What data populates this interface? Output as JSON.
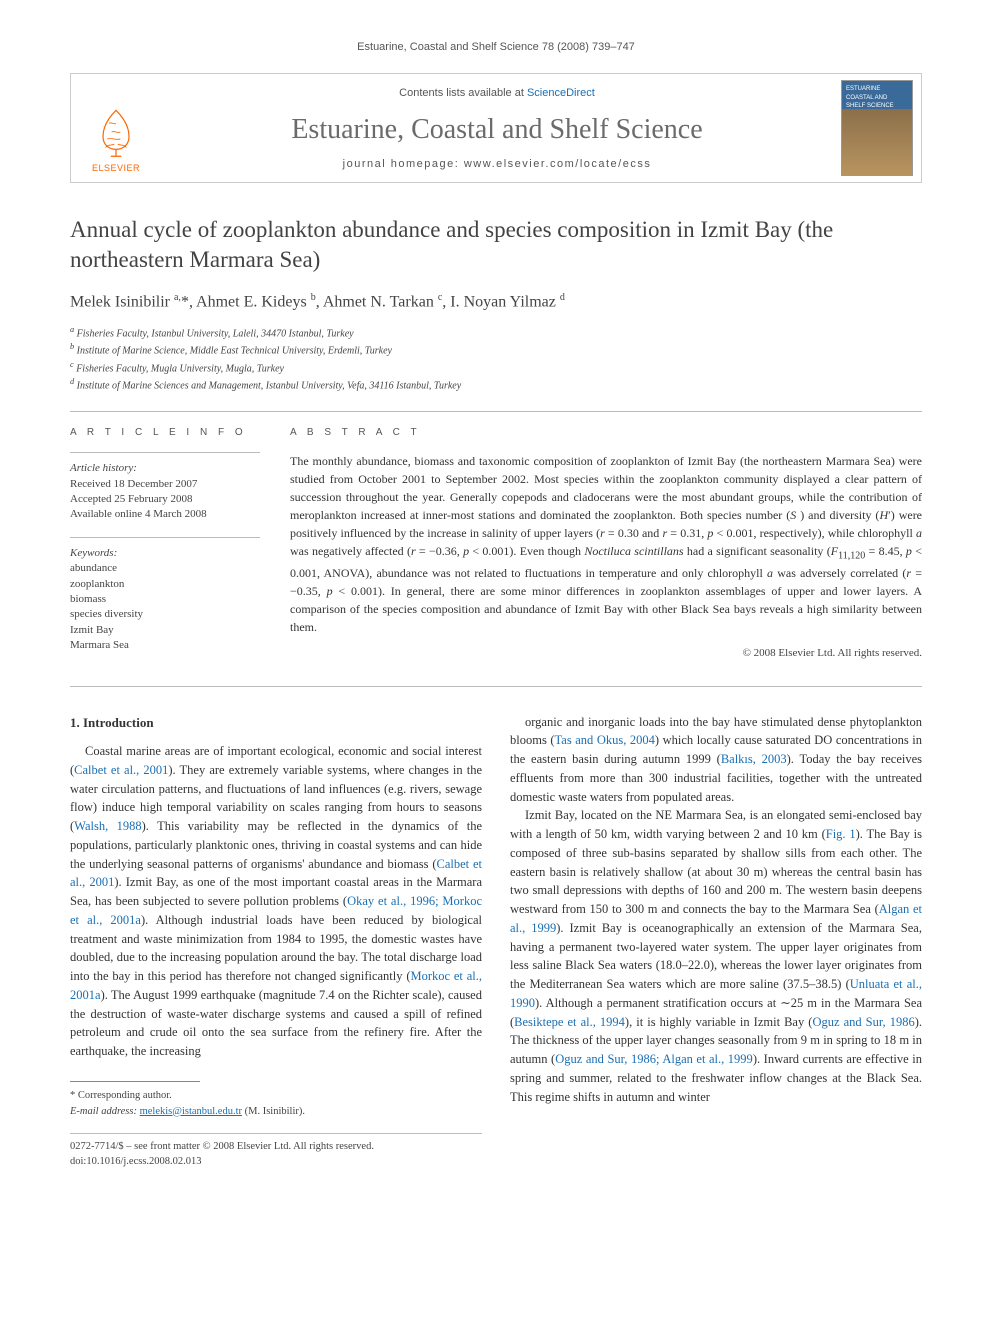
{
  "running_head": "Estuarine, Coastal and Shelf Science 78 (2008) 739–747",
  "masthead": {
    "contents_prefix": "Contents lists available at ",
    "contents_link": "ScienceDirect",
    "journal_name": "Estuarine, Coastal and Shelf Science",
    "homepage_prefix": "journal homepage: ",
    "homepage_url": "www.elsevier.com/locate/ecss",
    "publisher_label": "ELSEVIER",
    "cover_text": "ESTUARINE COASTAL AND SHELF SCIENCE"
  },
  "article": {
    "title": "Annual cycle of zooplankton abundance and species composition in Izmit Bay (the northeastern Marmara Sea)",
    "authors_html": "Melek Isinibilir <sup>a,</sup>*, Ahmet E. Kideys <sup>b</sup>, Ahmet N. Tarkan <sup>c</sup>, I. Noyan Yilmaz <sup>d</sup>",
    "affiliations": [
      "a Fisheries Faculty, Istanbul University, Laleli, 34470 Istanbul, Turkey",
      "b Institute of Marine Science, Middle East Technical University, Erdemli, Turkey",
      "c Fisheries Faculty, Mugla University, Mugla, Turkey",
      "d Institute of Marine Sciences and Management, Istanbul University, Vefa, 34116 Istanbul, Turkey"
    ]
  },
  "article_info": {
    "heading": "A R T I C L E   I N F O",
    "history_label": "Article history:",
    "history": [
      "Received 18 December 2007",
      "Accepted 25 February 2008",
      "Available online 4 March 2008"
    ],
    "keywords_label": "Keywords:",
    "keywords": [
      "abundance",
      "zooplankton",
      "biomass",
      "species diversity",
      "Izmit Bay",
      "Marmara Sea"
    ]
  },
  "abstract": {
    "heading": "A B S T R A C T",
    "text": "The monthly abundance, biomass and taxonomic composition of zooplankton of Izmit Bay (the northeastern Marmara Sea) were studied from October 2001 to September 2002. Most species within the zooplankton community displayed a clear pattern of succession throughout the year. Generally copepods and cladocerans were the most abundant groups, while the contribution of meroplankton increased at inner-most stations and dominated the zooplankton. Both species number (S ) and diversity (H′) were positively influenced by the increase in salinity of upper layers (r = 0.30 and r = 0.31, p < 0.001, respectively), while chlorophyll a was negatively affected (r = −0.36, p < 0.001). Even though Noctiluca scintillans had a significant seasonality (F11,120 = 8.45, p < 0.001, ANOVA), abundance was not related to fluctuations in temperature and only chlorophyll a was adversely correlated (r = −0.35, p < 0.001). In general, there are some minor differences in zooplankton assemblages of upper and lower layers. A comparison of the species composition and abundance of Izmit Bay with other Black Sea bays reveals a high similarity between them.",
    "copyright": "© 2008 Elsevier Ltd. All rights reserved."
  },
  "body": {
    "section_number": "1.",
    "section_title": "Introduction",
    "col1_paras": [
      "Coastal marine areas are of important ecological, economic and social interest (<span class=\"cite\">Calbet et al., 2001</span>). They are extremely variable systems, where changes in the water circulation patterns, and fluctuations of land influences (e.g. rivers, sewage flow) induce high temporal variability on scales ranging from hours to seasons (<span class=\"cite\">Walsh, 1988</span>). This variability may be reflected in the dynamics of the populations, particularly planktonic ones, thriving in coastal systems and can hide the underlying seasonal patterns of organisms' abundance and biomass (<span class=\"cite\">Calbet et al., 2001</span>). Izmit Bay, as one of the most important coastal areas in the Marmara Sea, has been subjected to severe pollution problems (<span class=\"cite\">Okay et al., 1996; Morkoc et al., 2001a</span>). Although industrial loads have been reduced by biological treatment and waste minimization from 1984 to 1995, the domestic wastes have doubled, due to the increasing population around the bay. The total discharge load into the bay in this period has therefore not changed significantly (<span class=\"cite\">Morkoc et al., 2001a</span>). The August 1999 earthquake (magnitude 7.4 on the Richter scale), caused the destruction of waste-water discharge systems and caused a spill of refined petroleum and crude oil onto the sea surface from the refinery fire. After the earthquake, the increasing"
    ],
    "col2_paras": [
      "organic and inorganic loads into the bay have stimulated dense phytoplankton blooms (<span class=\"cite\">Tas and Okus, 2004</span>) which locally cause saturated DO concentrations in the eastern basin during autumn 1999 (<span class=\"cite\">Balkıs, 2003</span>). Today the bay receives effluents from more than 300 industrial facilities, together with the untreated domestic waste waters from populated areas.",
      "Izmit Bay, located on the NE Marmara Sea, is an elongated semi-enclosed bay with a length of 50 km, width varying between 2 and 10 km (<span class=\"cite\">Fig. 1</span>). The Bay is composed of three sub-basins separated by shallow sills from each other. The eastern basin is relatively shallow (at about 30 m) whereas the central basin has two small depressions with depths of 160 and 200 m. The western basin deepens westward from 150 to 300 m and connects the bay to the Marmara Sea (<span class=\"cite\">Algan et al., 1999</span>). Izmit Bay is oceanographically an extension of the Marmara Sea, having a permanent two-layered water system. The upper layer originates from less saline Black Sea waters (18.0–22.0), whereas the lower layer originates from the Mediterranean Sea waters which are more saline (37.5–38.5) (<span class=\"cite\">Unluata et al., 1990</span>). Although a permanent stratification occurs at ∼25 m in the Marmara Sea (<span class=\"cite\">Besiktepe et al., 1994</span>), it is highly variable in Izmit Bay (<span class=\"cite\">Oguz and Sur, 1986</span>). The thickness of the upper layer changes seasonally from 9 m in spring to 18 m in autumn (<span class=\"cite\">Oguz and Sur, 1986; Algan et al., 1999</span>). Inward currents are effective in spring and summer, related to the freshwater inflow changes at the Black Sea. This regime shifts in autumn and winter"
    ]
  },
  "footer": {
    "corresponding_label": "* Corresponding author.",
    "email_label": "E-mail address:",
    "email": "melekis@istanbul.edu.tr",
    "email_author": "(M. Isinibilir).",
    "issn_line": "0272-7714/$ – see front matter © 2008 Elsevier Ltd. All rights reserved.",
    "doi_line": "doi:10.1016/j.ecss.2008.02.013"
  },
  "colors": {
    "link": "#1a6fb3",
    "elsevier_orange": "#ff6600",
    "text": "#333333",
    "heading_gray": "#6b6b6b",
    "rule": "#bbbbbb"
  }
}
